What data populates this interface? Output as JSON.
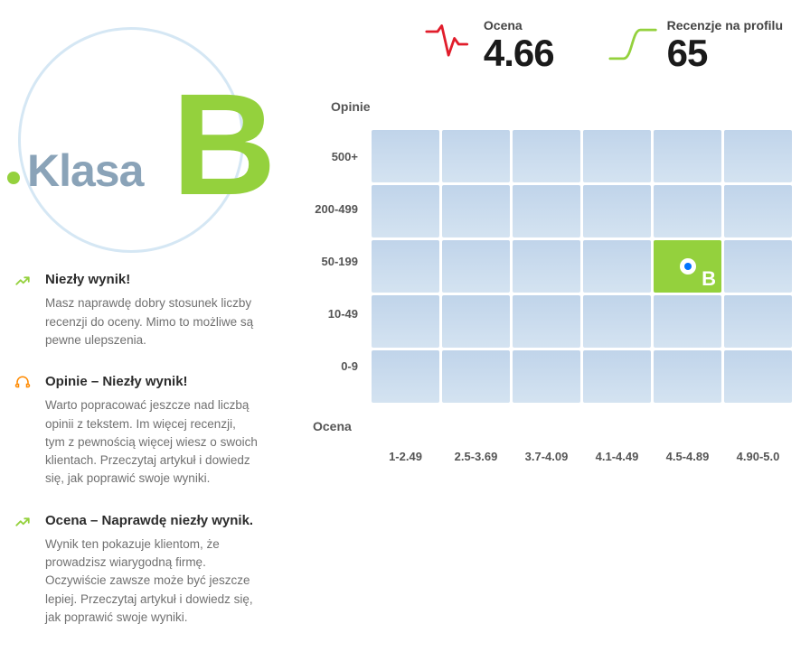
{
  "badge": {
    "klasa_label": "Klasa",
    "grade_letter": "B",
    "grade_color": "#94d13d",
    "klasa_color": "#8aa3b8",
    "circle_color": "#d5e7f4"
  },
  "recommendations": [
    {
      "icon": "trend-up",
      "icon_color": "#94d13d",
      "title": "Niezły wynik!",
      "body": "Masz naprawdę dobry stosunek liczby recenzji do oceny. Mimo to możliwe są pewne ulepszenia."
    },
    {
      "icon": "headset",
      "icon_color": "#ff8a00",
      "title": "Opinie – Niezły wynik!",
      "body": "Warto popracować jeszcze nad liczbą opinii z tekstem. Im więcej recenzji, tym z pewnością więcej wiesz o swoich klientach. Przeczytaj artykuł i dowiedz się, jak poprawić swoje wyniki."
    },
    {
      "icon": "trend-up",
      "icon_color": "#94d13d",
      "title": "Ocena – Naprawdę niezły wynik.",
      "body": "Wynik ten pokazuje klientom, że prowadzisz wiarygodną firmę. Oczywiście zawsze może być jeszcze lepiej. Przeczytaj artykuł i dowiedz się, jak poprawić swoje wyniki."
    }
  ],
  "stats": {
    "ocena": {
      "label": "Ocena",
      "value": "4.66",
      "icon_color": "#e11d2b"
    },
    "recenzje": {
      "label": "Recenzje na profilu",
      "value": "65",
      "icon_color": "#94d13d"
    }
  },
  "heatmap": {
    "y_title": "Opinie",
    "x_title": "Ocena",
    "row_labels": [
      "500+",
      "200-499",
      "50-199",
      "10-49",
      "0-9"
    ],
    "col_labels": [
      "1-2.49",
      "2.5-3.69",
      "3.7-4.09",
      "4.1-4.49",
      "4.5-4.89",
      "4.90-5.0"
    ],
    "rows": 5,
    "cols": 6,
    "cell_color": "#c8daea",
    "hot_cell": {
      "row": 2,
      "col": 4,
      "letter": "B",
      "bg": "#94d13d",
      "marker_ring": "#ffffff",
      "marker_dot": "#0074ff"
    }
  }
}
